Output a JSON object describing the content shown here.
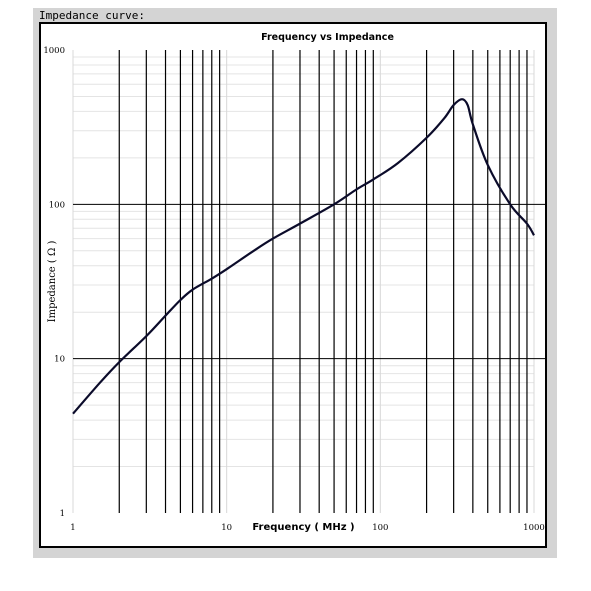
{
  "caption": "Impedance curve:",
  "chart_data": {
    "type": "line",
    "title": "Frequency vs Impedance",
    "xlabel": "Frequency ( MHz )",
    "ylabel": "Impedance ( Ω )",
    "xscale": "log",
    "yscale": "log",
    "xlim": [
      1,
      1000
    ],
    "ylim": [
      1,
      1000
    ],
    "x_tick_labels": [
      "1",
      "10",
      "100",
      "1000"
    ],
    "y_tick_labels": [
      "1",
      "10",
      "100",
      "1000"
    ],
    "grid": true,
    "legend": "none",
    "line_color": "#0b0b2a",
    "series": [
      {
        "x": [
          1,
          1.5,
          2,
          3,
          4,
          5,
          6,
          8,
          10,
          15,
          20,
          30,
          50,
          70,
          90,
          130,
          200,
          260,
          300,
          340,
          370,
          400,
          500,
          700,
          900,
          1000
        ],
        "y": [
          4.4,
          7,
          9.5,
          14,
          19,
          24,
          28,
          33,
          38,
          50,
          60,
          75,
          100,
          125,
          145,
          185,
          270,
          360,
          440,
          480,
          440,
          330,
          180,
          100,
          75,
          63
        ]
      }
    ]
  }
}
